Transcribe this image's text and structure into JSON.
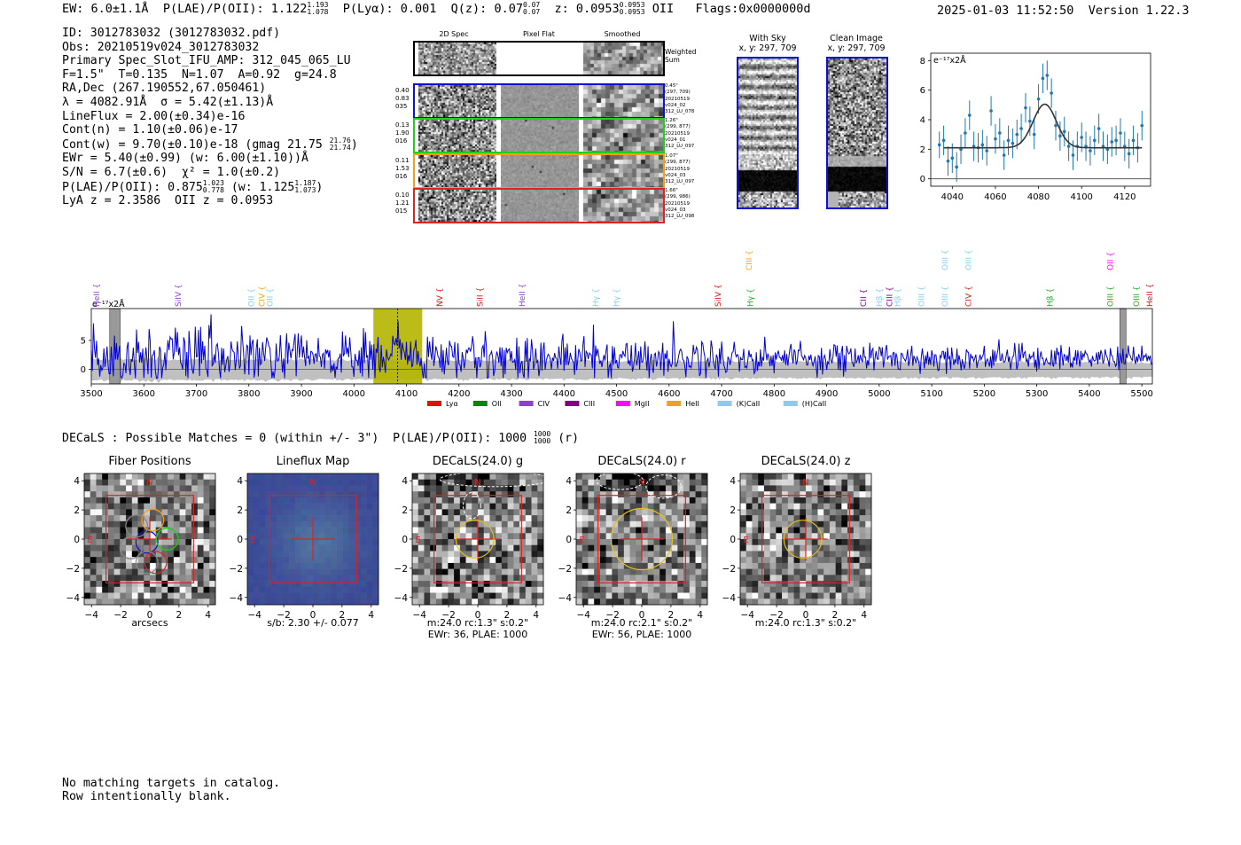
{
  "header": {
    "ew": "EW: 6.0±1.1Å",
    "plae": "P(LAE)/P(OII): 1.122",
    "plae_hi": "1.193",
    "plae_lo": "1.078",
    "plya": "P(Lyα): 0.001",
    "qz": "Q(z): 0.07",
    "qz_hi": "0.07",
    "qz_lo": "0.07",
    "z": "z: 0.0953",
    "z_hi": "0.0953",
    "z_lo": "0.0953",
    "z_line": "OII",
    "flags": "Flags:0x0000000d",
    "datetime": "2025-01-03 11:52:50",
    "version": "Version 1.22.3"
  },
  "info": {
    "id": "ID: 3012783032 (3012783032.pdf)",
    "obs": "Obs: 20210519v024_3012783032",
    "primary": "Primary Spec_Slot_IFU_AMP: 312_045_065_LU",
    "fiber": "F=1.5\"  T=0.135  N=1.07  A=0.92  g=24.8",
    "radec": "RA,Dec (267.190552,67.050461)",
    "lambda": "λ = 4082.91Å  σ = 5.42(±1.13)Å",
    "lineflux": "LineFlux = 2.00(±0.34)e-16",
    "contn": "Cont(n) = 1.10(±0.06)e-17",
    "contw": "Cont(w) = 9.70(±0.10)e-18 (gmag 21.75",
    "contw_hi": "21.76",
    "contw_lo": "21.74",
    "ewr": "EWr = 5.40(±0.99) (w: 6.00(±1.10))Å",
    "sn": "S/N = 6.7(±0.6)  χ² = 1.0(±0.2)",
    "plae2": "P(LAE)/P(OII): 0.875",
    "plae2_hi": "1.023",
    "plae2_lo": "0.778",
    "plae2_w": "(w: 1.125",
    "plae2_w_hi": "1.187",
    "plae2_w_lo": "1.073",
    "lyaz": "LyA z = 2.3586  OII z = 0.0953"
  },
  "cutouts": {
    "col_titles": [
      "2D Spec",
      "Pixel Flat",
      "Smoothed"
    ],
    "weighted_label": "Weighted\nSum",
    "rows": [
      {
        "left": [
          "0.40",
          "0.83",
          "035"
        ],
        "right": [
          "0.45\"",
          "(297, 709)",
          "20210519",
          "v024_02",
          "312_LU_078"
        ],
        "color": "#1010cc"
      },
      {
        "left": [
          "0.13",
          "1.90",
          "016"
        ],
        "right": [
          "1.26\"",
          "(299, 877)",
          "20210519",
          "v024_01",
          "312_LU_097"
        ],
        "color": "#22cc22"
      },
      {
        "left": [
          "0.11",
          "1.53",
          "016"
        ],
        "right": [
          "1.07\"",
          "(299, 877)",
          "20210519",
          "v024_03",
          "312_LU_097"
        ],
        "color": "#f0a020"
      },
      {
        "left": [
          "0.10",
          "1.21",
          "015"
        ],
        "right": [
          "1.66\"",
          "(299, 986)",
          "20210519",
          "v024_03",
          "312_LU_098"
        ],
        "color": "#dd2222"
      }
    ]
  },
  "sky": {
    "with_sky_title": "With Sky",
    "with_sky_xy": "x, y: 297, 709",
    "clean_title": "Clean Image",
    "clean_xy": "x, y: 297, 709"
  },
  "chart_data": [
    {
      "type": "scatter",
      "title": "",
      "ylabel": "e⁻¹⁷x2Å",
      "xlim": [
        4030,
        4132
      ],
      "ylim": [
        -0.5,
        8.5
      ],
      "xticks": [
        4040,
        4060,
        4080,
        4100,
        4120
      ],
      "yticks": [
        0,
        2,
        4,
        6,
        8
      ],
      "points": [
        {
          "x": 4034,
          "y": 2.3,
          "err": 0.9
        },
        {
          "x": 4036,
          "y": 2.6,
          "err": 1.0
        },
        {
          "x": 4038,
          "y": 1.2,
          "err": 1.0
        },
        {
          "x": 4040,
          "y": 1.4,
          "err": 1.0
        },
        {
          "x": 4042,
          "y": 0.8,
          "err": 1.0
        },
        {
          "x": 4044,
          "y": 2.0,
          "err": 1.0
        },
        {
          "x": 4046,
          "y": 3.1,
          "err": 1.0
        },
        {
          "x": 4048,
          "y": 4.3,
          "err": 1.0
        },
        {
          "x": 4050,
          "y": 2.2,
          "err": 1.0
        },
        {
          "x": 4052,
          "y": 2.1,
          "err": 1.0
        },
        {
          "x": 4054,
          "y": 2.3,
          "err": 1.0
        },
        {
          "x": 4056,
          "y": 1.9,
          "err": 1.0
        },
        {
          "x": 4058,
          "y": 4.6,
          "err": 1.0
        },
        {
          "x": 4060,
          "y": 2.7,
          "err": 1.0
        },
        {
          "x": 4062,
          "y": 3.1,
          "err": 1.0
        },
        {
          "x": 4064,
          "y": 1.6,
          "err": 1.0
        },
        {
          "x": 4066,
          "y": 2.6,
          "err": 1.0
        },
        {
          "x": 4068,
          "y": 2.4,
          "err": 1.0
        },
        {
          "x": 4070,
          "y": 3.0,
          "err": 1.0
        },
        {
          "x": 4072,
          "y": 3.4,
          "err": 1.0
        },
        {
          "x": 4074,
          "y": 4.8,
          "err": 1.0
        },
        {
          "x": 4076,
          "y": 3.9,
          "err": 1.0
        },
        {
          "x": 4078,
          "y": 3.0,
          "err": 1.0
        },
        {
          "x": 4080,
          "y": 5.4,
          "err": 1.0
        },
        {
          "x": 4082,
          "y": 6.8,
          "err": 1.0
        },
        {
          "x": 4084,
          "y": 7.0,
          "err": 1.0
        },
        {
          "x": 4086,
          "y": 5.8,
          "err": 1.0
        },
        {
          "x": 4088,
          "y": 3.6,
          "err": 1.0
        },
        {
          "x": 4090,
          "y": 2.9,
          "err": 1.0
        },
        {
          "x": 4092,
          "y": 3.2,
          "err": 1.0
        },
        {
          "x": 4094,
          "y": 2.2,
          "err": 1.0
        },
        {
          "x": 4096,
          "y": 1.6,
          "err": 1.0
        },
        {
          "x": 4098,
          "y": 2.2,
          "err": 1.0
        },
        {
          "x": 4100,
          "y": 2.8,
          "err": 1.0
        },
        {
          "x": 4102,
          "y": 2.2,
          "err": 1.0
        },
        {
          "x": 4104,
          "y": 1.9,
          "err": 1.0
        },
        {
          "x": 4106,
          "y": 2.6,
          "err": 1.0
        },
        {
          "x": 4108,
          "y": 3.4,
          "err": 1.0
        },
        {
          "x": 4110,
          "y": 2.2,
          "err": 1.0
        },
        {
          "x": 4112,
          "y": 2.0,
          "err": 1.0
        },
        {
          "x": 4114,
          "y": 2.5,
          "err": 1.0
        },
        {
          "x": 4116,
          "y": 2.6,
          "err": 1.0
        },
        {
          "x": 4118,
          "y": 3.1,
          "err": 1.0
        },
        {
          "x": 4120,
          "y": 2.2,
          "err": 1.0
        },
        {
          "x": 4122,
          "y": 1.7,
          "err": 1.0
        },
        {
          "x": 4124,
          "y": 2.6,
          "err": 1.0
        },
        {
          "x": 4126,
          "y": 2.1,
          "err": 1.0
        },
        {
          "x": 4128,
          "y": 3.6,
          "err": 1.0
        }
      ],
      "fit": {
        "continuum": 2.1,
        "amplitude": 2.95,
        "center": 4082.9,
        "sigma": 5.4,
        "xrange": [
          4036,
          4128
        ]
      }
    },
    {
      "type": "line",
      "title": "",
      "ylabel": "e⁻¹⁷x2Å",
      "xlim": [
        3500,
        5520
      ],
      "ylim": [
        -2.5,
        10.5
      ],
      "xticks": [
        3500,
        3600,
        3700,
        3800,
        3900,
        4000,
        4100,
        4200,
        4300,
        4400,
        4500,
        4600,
        4700,
        4800,
        4900,
        5000,
        5100,
        5200,
        5300,
        5400,
        5500
      ],
      "yticks": [
        0,
        5
      ],
      "highlight": [
        4037,
        4130
      ],
      "marker": 4083,
      "masked": [
        [
          3535,
          3555
        ],
        [
          5458,
          5470
        ]
      ],
      "series": [
        {
          "name": "",
          "color": "#0000dd",
          "mean": 2.0,
          "noise_start": 2.6,
          "noise_end": 0.9
        }
      ],
      "lines": [
        {
          "label": "HeII",
          "x": 3510,
          "color": "#8b3fd9",
          "row": 0
        },
        {
          "label": "SiIV",
          "x": 3665,
          "color": "#8b3fd9",
          "row": 0
        },
        {
          "label": "OII",
          "x": 3805,
          "color": "#87ceeb",
          "row": 0
        },
        {
          "label": "CIV",
          "x": 3825,
          "color": "#f0a020",
          "row": 0
        },
        {
          "label": "OII",
          "x": 3840,
          "color": "#87ceeb",
          "row": 0
        },
        {
          "label": "NV",
          "x": 4163,
          "color": "#e01010",
          "row": 0
        },
        {
          "label": "SiII",
          "x": 4240,
          "color": "#e01010",
          "row": 0
        },
        {
          "label": "HeII",
          "x": 4320,
          "color": "#8b3fd9",
          "row": 0
        },
        {
          "label": "Hγ",
          "x": 4460,
          "color": "#87ceeb",
          "row": 0
        },
        {
          "label": "Hγ",
          "x": 4500,
          "color": "#87ceeb",
          "row": 0
        },
        {
          "label": "SiIV",
          "x": 4693,
          "color": "#e01010",
          "row": 0
        },
        {
          "label": "CIII",
          "x": 4752,
          "color": "#f0a020",
          "row": 1
        },
        {
          "label": "Hγ",
          "x": 4755,
          "color": "#22aa22",
          "row": 0
        },
        {
          "label": "CII",
          "x": 4970,
          "color": "#800080",
          "row": 0
        },
        {
          "label": "Hβ",
          "x": 5000,
          "color": "#87ceeb",
          "row": 0
        },
        {
          "label": "CIII",
          "x": 5020,
          "color": "#800080",
          "row": 0
        },
        {
          "label": "Hβ",
          "x": 5035,
          "color": "#87ceeb",
          "row": 0
        },
        {
          "label": "OIII",
          "x": 5080,
          "color": "#87ceeb",
          "row": 0
        },
        {
          "label": "OIII",
          "x": 5125,
          "color": "#87ceeb",
          "row": 1
        },
        {
          "label": "OIII",
          "x": 5125,
          "color": "#87ceeb",
          "row": 0
        },
        {
          "label": "OIII",
          "x": 5170,
          "color": "#87ceeb",
          "row": 1
        },
        {
          "label": "CIV",
          "x": 5170,
          "color": "#e01010",
          "row": 0
        },
        {
          "label": "Hβ",
          "x": 5325,
          "color": "#22aa22",
          "row": 0
        },
        {
          "label": "OII",
          "x": 5440,
          "color": "#ff00ff",
          "row": 1
        },
        {
          "label": "OIII",
          "x": 5440,
          "color": "#22aa22",
          "row": 0
        },
        {
          "label": "OIII",
          "x": 5490,
          "color": "#22aa22",
          "row": 0
        },
        {
          "label": "HeII",
          "x": 5515,
          "color": "#e01010",
          "row": 0
        }
      ],
      "legend": [
        {
          "label": "Lyα",
          "color": "#e01010"
        },
        {
          "label": "OII",
          "color": "#108010"
        },
        {
          "label": "CIV",
          "color": "#8b3fd9"
        },
        {
          "label": "CIII",
          "color": "#800080"
        },
        {
          "label": "MgII",
          "color": "#ff00ff"
        },
        {
          "label": "HeII",
          "color": "#f0a020"
        },
        {
          "label": "(K)CaII",
          "color": "#87ceeb"
        },
        {
          "label": "(H)CaII",
          "color": "#87ceeb"
        }
      ],
      "legend_placement": "below"
    }
  ],
  "decals": {
    "summary": "DECaLS : Possible Matches = 0 (within +/- 3\")  P(LAE)/P(OII): 1000",
    "summary_hi": "1000",
    "summary_lo": "1000",
    "summary_band": "(r)",
    "panels": [
      {
        "title": "Fiber Positions",
        "caption": [
          "arcsecs"
        ],
        "style": "fiber"
      },
      {
        "title": "Lineflux Map",
        "caption": [
          "s/b: 2.30 +/- 0.077"
        ],
        "style": "lineflux"
      },
      {
        "title": "DECaLS(24.0) g",
        "caption": [
          "m:24.0 rc:1.3\"  s:0.2\"",
          "EWr: 36, PLAE: 1000"
        ],
        "style": "g"
      },
      {
        "title": "DECaLS(24.0) r",
        "caption": [
          "m:24.0 rc:2.1\"  s:0.2\"",
          "EWr: 56, PLAE: 1000"
        ],
        "style": "r"
      },
      {
        "title": "DECaLS(24.0) z",
        "caption": [
          "m:24.0 rc:1.3\"  s:0.2\""
        ],
        "style": "z"
      }
    ],
    "ticks": [
      -4,
      -2,
      0,
      2,
      4
    ],
    "compass_n": "N",
    "compass_e": "E"
  },
  "footer": {
    "line1": "No matching targets in catalog.",
    "line2": "Row intentionally blank."
  }
}
